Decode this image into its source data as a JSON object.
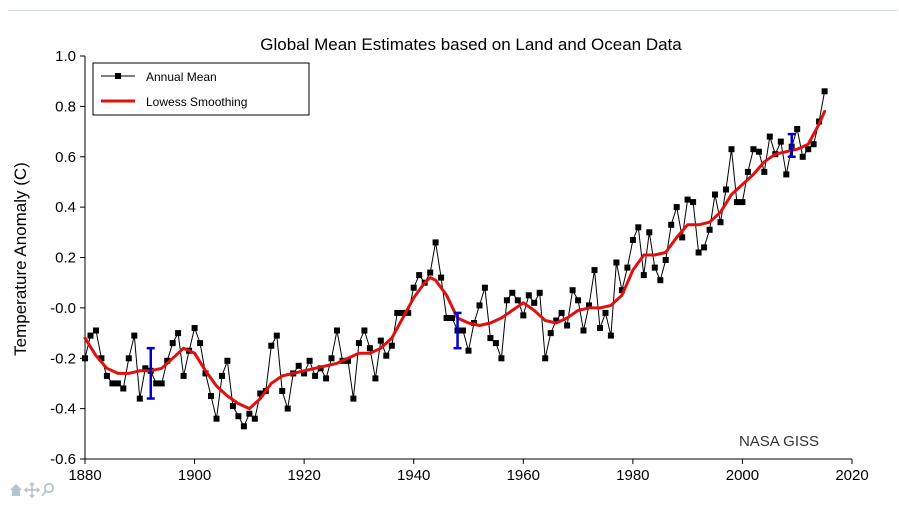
{
  "chart_data": {
    "type": "line",
    "title": "Global Mean Estimates based on Land and Ocean Data",
    "xlabel": "",
    "ylabel": "Temperature Anomaly (C)",
    "xlim": [
      1880,
      2020
    ],
    "ylim": [
      -0.6,
      1.0
    ],
    "xticks": [
      1880,
      1900,
      1920,
      1940,
      1960,
      1980,
      2000,
      2020
    ],
    "yticks": [
      -0.6,
      -0.4,
      -0.2,
      0.0,
      0.2,
      0.4,
      0.6,
      0.8,
      1.0
    ],
    "ytick_labels": [
      "-0.6",
      "-0.4",
      "-0.2",
      "-0.0",
      "0.2",
      "0.4",
      "0.6",
      "0.8",
      "1.0"
    ],
    "xtick_labels": [
      "1880",
      "1900",
      "1920",
      "1940",
      "1960",
      "1980",
      "2000",
      "2020"
    ],
    "legend_position": "top-left",
    "grid": false,
    "annotation": "NASA GISS",
    "series": [
      {
        "name": "Annual Mean",
        "style": "line-with-square-markers",
        "color": "#000000",
        "x": [
          1880,
          1881,
          1882,
          1883,
          1884,
          1885,
          1886,
          1887,
          1888,
          1889,
          1890,
          1891,
          1892,
          1893,
          1894,
          1895,
          1896,
          1897,
          1898,
          1899,
          1900,
          1901,
          1902,
          1903,
          1904,
          1905,
          1906,
          1907,
          1908,
          1909,
          1910,
          1911,
          1912,
          1913,
          1914,
          1915,
          1916,
          1917,
          1918,
          1919,
          1920,
          1921,
          1922,
          1923,
          1924,
          1925,
          1926,
          1927,
          1928,
          1929,
          1930,
          1931,
          1932,
          1933,
          1934,
          1935,
          1936,
          1937,
          1938,
          1939,
          1940,
          1941,
          1942,
          1943,
          1944,
          1945,
          1946,
          1947,
          1948,
          1949,
          1950,
          1951,
          1952,
          1953,
          1954,
          1955,
          1956,
          1957,
          1958,
          1959,
          1960,
          1961,
          1962,
          1963,
          1964,
          1965,
          1966,
          1967,
          1968,
          1969,
          1970,
          1971,
          1972,
          1973,
          1974,
          1975,
          1976,
          1977,
          1978,
          1979,
          1980,
          1981,
          1982,
          1983,
          1984,
          1985,
          1986,
          1987,
          1988,
          1989,
          1990,
          1991,
          1992,
          1993,
          1994,
          1995,
          1996,
          1997,
          1998,
          1999,
          2000,
          2001,
          2002,
          2003,
          2004,
          2005,
          2006,
          2007,
          2008,
          2009,
          2010,
          2011,
          2012,
          2013,
          2014,
          2015
        ],
        "y": [
          -0.2,
          -0.11,
          -0.09,
          -0.2,
          -0.27,
          -0.3,
          -0.3,
          -0.32,
          -0.2,
          -0.11,
          -0.36,
          -0.24,
          -0.25,
          -0.3,
          -0.3,
          -0.21,
          -0.14,
          -0.1,
          -0.27,
          -0.17,
          -0.08,
          -0.14,
          -0.26,
          -0.35,
          -0.44,
          -0.27,
          -0.21,
          -0.39,
          -0.43,
          -0.47,
          -0.42,
          -0.44,
          -0.34,
          -0.33,
          -0.15,
          -0.11,
          -0.33,
          -0.4,
          -0.26,
          -0.23,
          -0.26,
          -0.21,
          -0.27,
          -0.24,
          -0.28,
          -0.2,
          -0.09,
          -0.21,
          -0.21,
          -0.36,
          -0.14,
          -0.09,
          -0.16,
          -0.28,
          -0.13,
          -0.19,
          -0.15,
          -0.02,
          -0.02,
          -0.02,
          0.08,
          0.13,
          0.1,
          0.14,
          0.26,
          0.12,
          -0.04,
          -0.04,
          -0.09,
          -0.09,
          -0.17,
          -0.06,
          0.01,
          0.08,
          -0.12,
          -0.14,
          -0.2,
          0.03,
          0.06,
          0.03,
          -0.03,
          0.05,
          0.02,
          0.06,
          -0.2,
          -0.1,
          -0.05,
          -0.02,
          -0.07,
          0.07,
          0.03,
          -0.09,
          0.01,
          0.15,
          -0.08,
          -0.02,
          -0.11,
          0.18,
          0.07,
          0.16,
          0.27,
          0.32,
          0.13,
          0.3,
          0.16,
          0.11,
          0.19,
          0.33,
          0.4,
          0.28,
          0.43,
          0.42,
          0.22,
          0.24,
          0.31,
          0.45,
          0.34,
          0.47,
          0.63,
          0.42,
          0.42,
          0.54,
          0.63,
          0.62,
          0.54,
          0.68,
          0.61,
          0.66,
          0.53,
          0.64,
          0.71,
          0.6,
          0.63,
          0.65,
          0.74,
          0.86
        ]
      },
      {
        "name": "Lowess Smoothing",
        "style": "line",
        "color": "#e01010",
        "x": [
          1880,
          1882,
          1884,
          1886,
          1888,
          1890,
          1892,
          1894,
          1896,
          1898,
          1900,
          1902,
          1904,
          1906,
          1908,
          1910,
          1912,
          1914,
          1916,
          1918,
          1920,
          1922,
          1924,
          1926,
          1928,
          1930,
          1932,
          1934,
          1936,
          1938,
          1940,
          1942,
          1943,
          1944,
          1946,
          1948,
          1950,
          1952,
          1954,
          1956,
          1958,
          1960,
          1962,
          1964,
          1966,
          1968,
          1970,
          1972,
          1974,
          1976,
          1978,
          1980,
          1982,
          1984,
          1986,
          1988,
          1990,
          1992,
          1994,
          1996,
          1998,
          2000,
          2002,
          2004,
          2006,
          2008,
          2010,
          2012,
          2014,
          2015
        ],
        "y": [
          -0.12,
          -0.19,
          -0.24,
          -0.26,
          -0.26,
          -0.25,
          -0.25,
          -0.24,
          -0.2,
          -0.16,
          -0.18,
          -0.25,
          -0.31,
          -0.35,
          -0.38,
          -0.4,
          -0.36,
          -0.3,
          -0.27,
          -0.26,
          -0.25,
          -0.24,
          -0.23,
          -0.22,
          -0.2,
          -0.18,
          -0.18,
          -0.16,
          -0.12,
          -0.04,
          0.04,
          0.1,
          0.12,
          0.11,
          0.05,
          -0.04,
          -0.06,
          -0.07,
          -0.06,
          -0.04,
          -0.01,
          0.02,
          -0.01,
          -0.05,
          -0.06,
          -0.04,
          -0.01,
          0.0,
          0.0,
          0.01,
          0.05,
          0.15,
          0.21,
          0.21,
          0.22,
          0.28,
          0.33,
          0.33,
          0.34,
          0.38,
          0.45,
          0.49,
          0.53,
          0.58,
          0.61,
          0.62,
          0.63,
          0.65,
          0.73,
          0.78
        ]
      }
    ],
    "error_bars": [
      {
        "x": 1892,
        "y": -0.26,
        "low": -0.36,
        "high": -0.16,
        "color": "#0000cc"
      },
      {
        "x": 1948,
        "y": -0.09,
        "low": -0.16,
        "high": -0.02,
        "color": "#0000cc"
      },
      {
        "x": 2009,
        "y": 0.64,
        "low": 0.6,
        "high": 0.69,
        "color": "#0000cc"
      }
    ]
  },
  "toolbar": {
    "home_icon": "home-icon",
    "pan_icon": "pan-icon",
    "zoom_icon": "zoom-icon",
    "icon_color": "#b8c4cc"
  }
}
